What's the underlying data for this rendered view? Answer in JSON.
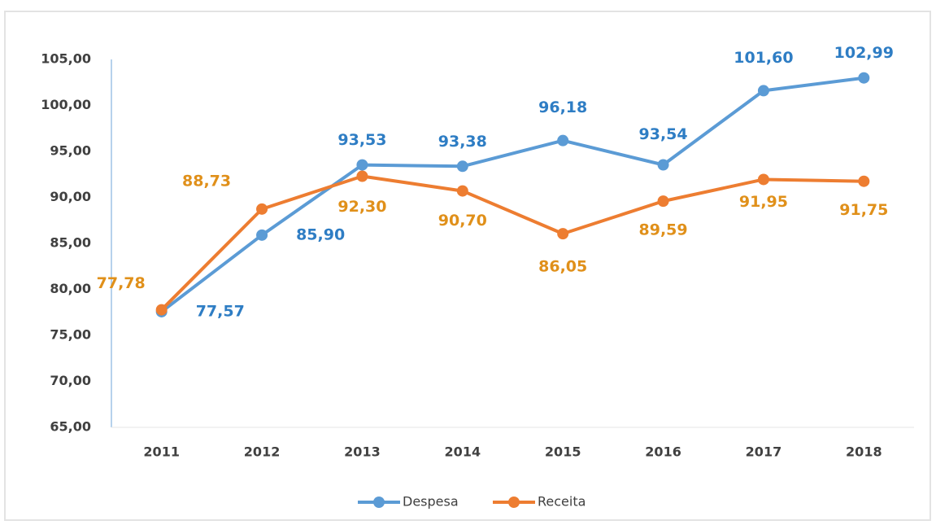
{
  "chart_data": {
    "type": "line",
    "categories": [
      "2011",
      "2012",
      "2013",
      "2014",
      "2015",
      "2016",
      "2017",
      "2018"
    ],
    "series": [
      {
        "name": "Despesa",
        "color": "#5b9bd5",
        "values": [
          77.57,
          85.9,
          93.53,
          93.38,
          96.18,
          93.54,
          101.6,
          102.99
        ],
        "value_labels": [
          "77,57",
          "85,90",
          "93,53",
          "93,38",
          "96,18",
          "93,54",
          "101,60",
          "102,99"
        ]
      },
      {
        "name": "Receita",
        "color": "#ed7d31",
        "values": [
          77.78,
          88.73,
          92.3,
          90.7,
          86.05,
          89.59,
          91.95,
          91.75
        ],
        "value_labels": [
          "77,78",
          "88,73",
          "92,30",
          "90,70",
          "86,05",
          "89,59",
          "91,95",
          "91,75"
        ]
      }
    ],
    "ylim": [
      65,
      105
    ],
    "yticks": [
      {
        "value": 65,
        "label": "65,00"
      },
      {
        "value": 70,
        "label": "70,00"
      },
      {
        "value": 75,
        "label": "75,00"
      },
      {
        "value": 80,
        "label": "80,00"
      },
      {
        "value": 85,
        "label": "85,00"
      },
      {
        "value": 90,
        "label": "90,00"
      },
      {
        "value": 95,
        "label": "95,00"
      },
      {
        "value": 100,
        "label": "100,00"
      },
      {
        "value": 105,
        "label": "105,00"
      }
    ],
    "grid": false,
    "legend": "bottom"
  }
}
